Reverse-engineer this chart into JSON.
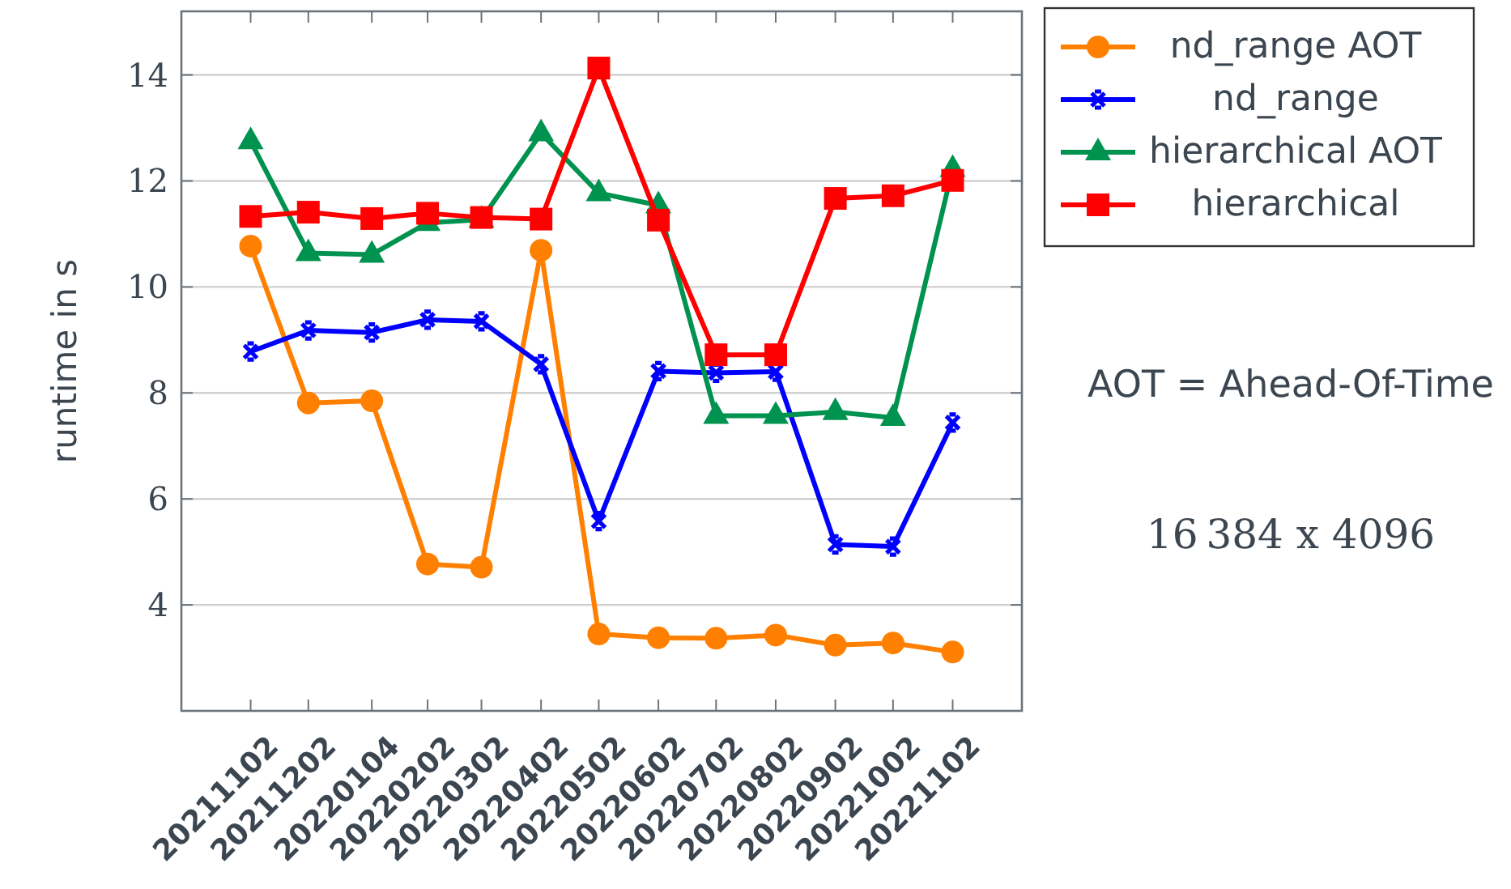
{
  "chart_data": {
    "type": "line",
    "ylabel": "runtime in s",
    "x": [
      "2021-11-02",
      "2021-12-02",
      "2022-01-04",
      "2022-02-02",
      "2022-03-02",
      "2022-04-02",
      "2022-05-02",
      "2022-06-02",
      "2022-07-02",
      "2022-08-02",
      "2022-09-02",
      "2022-10-02",
      "2022-11-02"
    ],
    "xlim": [
      "2021-09-27",
      "2022-12-08"
    ],
    "xticks": [
      {
        "value": "2021-11-02",
        "label": "20211102"
      },
      {
        "value": "2021-12-02",
        "label": "20211202"
      },
      {
        "value": "2022-01-04",
        "label": "20220104"
      },
      {
        "value": "2022-02-02",
        "label": "20220202"
      },
      {
        "value": "2022-03-02",
        "label": "20220302"
      },
      {
        "value": "2022-04-02",
        "label": "20220402"
      },
      {
        "value": "2022-05-02",
        "label": "20220502"
      },
      {
        "value": "2022-06-02",
        "label": "20220602"
      },
      {
        "value": "2022-07-02",
        "label": "20220702"
      },
      {
        "value": "2022-08-02",
        "label": "20220802"
      },
      {
        "value": "2022-09-02",
        "label": "20220902"
      },
      {
        "value": "2022-10-02",
        "label": "20221002"
      },
      {
        "value": "2022-11-02",
        "label": "20221102"
      }
    ],
    "ylim": [
      2.0,
      15.2
    ],
    "yticks": [
      4,
      6,
      8,
      10,
      12,
      14
    ],
    "grid": "y",
    "legend": "top right",
    "line_style": "solid",
    "series": [
      {
        "name": "nd_range AOT",
        "color": "#ff8000",
        "marker": "circle",
        "values": [
          10.77,
          7.81,
          7.85,
          4.77,
          4.71,
          10.69,
          3.45,
          3.38,
          3.37,
          3.43,
          3.24,
          3.28,
          3.11
        ]
      },
      {
        "name": "nd_range",
        "color": "#0000ff",
        "marker": "cross",
        "values": [
          8.78,
          9.18,
          9.14,
          9.38,
          9.35,
          8.54,
          5.58,
          8.41,
          8.38,
          8.4,
          5.14,
          5.1,
          7.44
        ]
      },
      {
        "name": "hierarchical AOT",
        "color": "#00924f",
        "marker": "triangle",
        "values": [
          12.75,
          10.64,
          10.61,
          11.21,
          11.27,
          12.9,
          11.77,
          11.54,
          7.57,
          7.57,
          7.64,
          7.53,
          12.23
        ]
      },
      {
        "name": "hierarchical",
        "color": "#ff0000",
        "marker": "square",
        "values": [
          11.33,
          11.41,
          11.29,
          11.39,
          11.31,
          11.28,
          14.13,
          11.26,
          8.72,
          8.72,
          11.67,
          11.72,
          12.01
        ]
      }
    ],
    "annotations": [
      "AOT = Ahead-Of-Time",
      "16 384 x 4096"
    ]
  }
}
